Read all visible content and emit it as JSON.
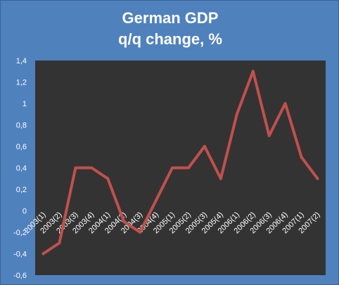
{
  "chart_data": {
    "type": "line",
    "title": "German GDP",
    "subtitle": "q/q change, %",
    "xlabel": "",
    "ylabel": "",
    "categories": [
      "2003(1)",
      "2003(2)",
      "2003(3)",
      "2003(4)",
      "2004(1)",
      "2004(2)",
      "2004(3)",
      "2004(4)",
      "2005(1)",
      "2005(2)",
      "2005(3)",
      "2005(4)",
      "2006(1)",
      "2006(2)",
      "2006(3)",
      "2006(4)",
      "2007(1)",
      "2007(2)"
    ],
    "series": [
      {
        "values": [
          -0.4,
          -0.3,
          0.4,
          0.4,
          0.3,
          -0.1,
          -0.2,
          0.1,
          0.4,
          0.4,
          0.6,
          0.3,
          0.9,
          1.3,
          0.7,
          1.0,
          0.5,
          0.3
        ]
      }
    ],
    "ylim": [
      -0.6,
      1.4
    ],
    "yticks": [
      "-0,6",
      "-0,4",
      "-0,2",
      "0",
      "0,2",
      "0,4",
      "0,6",
      "0,8",
      "1",
      "1,2",
      "1,4"
    ],
    "grid": false,
    "legend": "none",
    "colors": {
      "background": "#4f81bd",
      "plot_area": "#333333",
      "line": "#c0504d",
      "text": "#ffffff"
    }
  }
}
